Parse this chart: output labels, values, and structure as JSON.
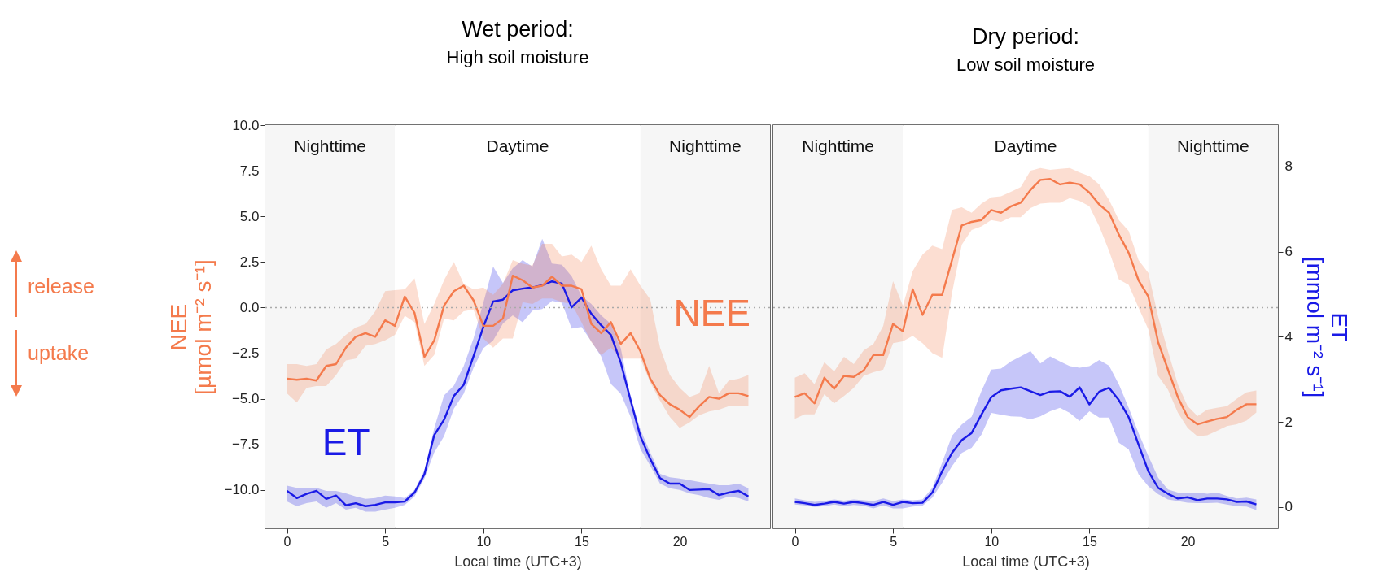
{
  "chart_data": [
    {
      "type": "line",
      "title": "Wet period:",
      "subtitle": "High soil moisture",
      "xlabel": "Local time (UTC+3)",
      "ylabel": "NEE\n[µmol m⁻² s⁻¹]",
      "tick_labels": "xy",
      "grid": false,
      "x": [
        0,
        0.5,
        1,
        1.5,
        2,
        2.5,
        3,
        3.5,
        4,
        4.5,
        5,
        5.5,
        6,
        6.5,
        7,
        7.5,
        8,
        8.5,
        9,
        9.5,
        10,
        10.5,
        11,
        11.5,
        12,
        12.5,
        13,
        13.5,
        14,
        14.5,
        15,
        15.5,
        16,
        16.5,
        17,
        17.5,
        18,
        18.5,
        19,
        19.5,
        20,
        20.5,
        21,
        21.5,
        22,
        22.5,
        23,
        23.5
      ],
      "xlim": [
        -1.1,
        24.6
      ],
      "xticks": [
        0,
        5,
        10,
        15,
        20
      ],
      "ylim": [
        -12.1,
        10
      ],
      "yticks": [
        {
          "value": -10,
          "label": "−10.0"
        },
        -7.5,
        {
          "value": -5,
          "label": "−5.0"
        },
        -2.5,
        {
          "value": 0,
          "label": "0.0"
        },
        2.5,
        {
          "value": 5,
          "label": "5.0"
        },
        7.5,
        {
          "value": 10,
          "label": "10.0"
        }
      ],
      "y2lim": [
        -0.5,
        8.97
      ],
      "ref_lines": [
        {
          "axis": "y",
          "value": 0,
          "color": "#aaaaaa",
          "line_style": "dotted"
        }
      ],
      "bands": [
        {
          "axis": "x",
          "from": -1.1,
          "to": 5.5,
          "label": "Nighttime",
          "color": "#f6f6f6"
        },
        {
          "axis": "x",
          "from": 5.5,
          "to": 18,
          "label": "Daytime",
          "color": "#ffffff"
        },
        {
          "axis": "x",
          "from": 18,
          "to": 24.6,
          "label": "Nighttime",
          "color": "#f6f6f6"
        }
      ],
      "annotations": [
        "release",
        "uptake"
      ],
      "series": [
        {
          "name": "NEE",
          "color": "#f47a4c",
          "values": [
            -3.9,
            -3.96,
            -3.9,
            -4.0,
            -3.2,
            -3.1,
            -2.2,
            -1.6,
            -1.4,
            -1.6,
            -0.7,
            -1.0,
            0.6,
            -0.3,
            -2.7,
            -1.8,
            0.1,
            0.9,
            1.2,
            0.4,
            -1.0,
            -1.0,
            -0.6,
            1.75,
            1.5,
            1.1,
            1.2,
            1.7,
            1.2,
            1.2,
            1.0,
            -0.9,
            -1.4,
            -0.8,
            -2.0,
            -1.4,
            -2.4,
            -3.9,
            -4.8,
            -5.3,
            -5.6,
            -6.0,
            -5.4,
            -4.9,
            -5.0,
            -4.7,
            -4.7,
            -4.85
          ],
          "upper": [
            -3.1,
            -3.1,
            -3.2,
            -3.1,
            -2.3,
            -2.0,
            -1.5,
            -1.1,
            -0.9,
            -0.2,
            0.9,
            0.95,
            1.0,
            1.6,
            -0.9,
            0.2,
            1.5,
            2.5,
            1.3,
            1.0,
            1.1,
            0.7,
            1.3,
            2.6,
            2.4,
            2.3,
            3.5,
            3.5,
            2.8,
            2.9,
            2.5,
            3.4,
            2.1,
            1.2,
            1.2,
            2.1,
            1.2,
            0.45,
            -2.2,
            -3.7,
            -4.4,
            -4.9,
            -4.7,
            -3.2,
            -4.7,
            -4.0,
            -3.9,
            -3.7
          ],
          "lower": [
            -4.7,
            -5.2,
            -4.4,
            -4.3,
            -4.3,
            -3.7,
            -2.9,
            -2.8,
            -2.1,
            -2.0,
            -1.8,
            -1.5,
            -0.45,
            -0.8,
            -3.2,
            -2.6,
            -0.6,
            -0.7,
            -0.2,
            -0.1,
            -1.7,
            -2.2,
            -1.7,
            -1.7,
            0.3,
            0.2,
            0.5,
            0.5,
            0.3,
            0.2,
            -0.8,
            -1.9,
            -2.6,
            -2.2,
            -2.8,
            -2.8,
            -2.8,
            -4.1,
            -5.1,
            -6.0,
            -6.6,
            -6.3,
            -5.9,
            -5.7,
            -5.6,
            -5.4,
            -5.4,
            -5.4
          ]
        },
        {
          "name": "ET",
          "color": "#1a1ae6",
          "axis": "y2",
          "values": [
            0.38,
            0.21,
            0.31,
            0.38,
            0.19,
            0.27,
            0.04,
            0.09,
            0.02,
            0.05,
            0.11,
            0.11,
            0.13,
            0.34,
            0.77,
            1.69,
            2.05,
            2.61,
            2.87,
            3.54,
            4.23,
            4.83,
            4.87,
            5.09,
            5.13,
            5.16,
            5.21,
            5.3,
            5.25,
            4.69,
            4.92,
            4.54,
            4.27,
            4.04,
            3.39,
            2.51,
            1.66,
            1.13,
            0.68,
            0.55,
            0.55,
            0.4,
            0.41,
            0.42,
            0.28,
            0.34,
            0.38,
            0.25
          ],
          "upper": [
            0.5,
            0.45,
            0.45,
            0.45,
            0.38,
            0.38,
            0.32,
            0.25,
            0.19,
            0.21,
            0.27,
            0.25,
            0.21,
            0.4,
            0.86,
            1.85,
            2.62,
            2.85,
            3.31,
            3.96,
            4.8,
            5.65,
            5.26,
            5.61,
            5.8,
            5.65,
            6.3,
            5.72,
            5.69,
            5.42,
            4.96,
            4.77,
            4.5,
            4.3,
            3.73,
            2.58,
            1.82,
            1.28,
            0.78,
            0.7,
            0.67,
            0.63,
            0.59,
            0.55,
            0.51,
            0.51,
            0.55,
            0.44
          ],
          "lower": [
            0.13,
            0.02,
            0.09,
            0.13,
            -0.02,
            0.09,
            -0.06,
            -0.02,
            -0.11,
            -0.11,
            -0.06,
            -0.02,
            0.05,
            0.25,
            0.67,
            1.28,
            1.66,
            2.31,
            2.66,
            3.27,
            3.73,
            3.91,
            4.31,
            4.5,
            4.34,
            4.61,
            4.65,
            4.84,
            4.8,
            4.19,
            4.23,
            3.89,
            3.54,
            2.89,
            2.66,
            2.12,
            1.36,
            0.97,
            0.55,
            0.44,
            0.4,
            0.32,
            0.28,
            0.21,
            0.17,
            0.25,
            0.21,
            0.13
          ]
        }
      ]
    },
    {
      "type": "line",
      "title": "Dry period:",
      "subtitle": "Low soil moisture",
      "xlabel": "Local time (UTC+3)",
      "y2label": "ET\n[mmol m⁻² s⁻¹]",
      "grid": false,
      "x": [
        0,
        0.5,
        1,
        1.5,
        2,
        2.5,
        3,
        3.5,
        4,
        4.5,
        5,
        5.5,
        6,
        6.5,
        7,
        7.5,
        8,
        8.5,
        9,
        9.5,
        10,
        10.5,
        11,
        11.5,
        12,
        12.5,
        13,
        13.5,
        14,
        14.5,
        15,
        15.5,
        16,
        16.5,
        17,
        17.5,
        18,
        18.5,
        19,
        19.5,
        20,
        20.5,
        21,
        21.5,
        22,
        22.5,
        23,
        23.5
      ],
      "xlim": [
        -1.1,
        24.6
      ],
      "xticks": [
        0,
        5,
        10,
        15,
        20
      ],
      "ylim": [
        -12.1,
        10
      ],
      "y2ticks": [
        0,
        2,
        4,
        6,
        8
      ],
      "y2lim": [
        -0.5,
        8.97
      ],
      "ref_lines": [
        {
          "axis": "y",
          "value": 0,
          "color": "#aaaaaa",
          "line_style": "dotted"
        }
      ],
      "bands": [
        {
          "axis": "x",
          "from": -1.1,
          "to": 5.5,
          "label": "Nighttime",
          "color": "#f6f6f6"
        },
        {
          "axis": "x",
          "from": 5.5,
          "to": 18,
          "label": "Daytime",
          "color": "#ffffff"
        },
        {
          "axis": "x",
          "from": 18,
          "to": 24.6,
          "label": "Nighttime",
          "color": "#f6f6f6"
        }
      ],
      "series": [
        {
          "color": "#f47a4c",
          "values": [
            -4.9,
            -4.7,
            -5.25,
            -3.85,
            -4.45,
            -3.75,
            -3.8,
            -3.45,
            -2.6,
            -2.6,
            -0.9,
            -1.3,
            1.0,
            -0.4,
            0.7,
            0.7,
            2.6,
            4.5,
            4.7,
            4.8,
            5.35,
            5.2,
            5.55,
            5.75,
            6.45,
            7.0,
            7.05,
            6.75,
            6.85,
            6.75,
            6.3,
            5.65,
            5.2,
            4.0,
            3.0,
            1.5,
            0.6,
            -1.9,
            -3.4,
            -4.9,
            -6.0,
            -6.4,
            -6.25,
            -6.1,
            -6.0,
            -5.6,
            -5.3,
            -5.3
          ],
          "upper": [
            -3.85,
            -3.6,
            -4.2,
            -3.0,
            -3.5,
            -2.7,
            -3.1,
            -2.35,
            -2.0,
            -1.0,
            1.45,
            0.1,
            2.0,
            2.9,
            3.4,
            3.2,
            5.35,
            5.5,
            5.2,
            5.7,
            6.05,
            6.1,
            6.35,
            6.6,
            7.5,
            7.65,
            7.55,
            7.6,
            7.65,
            7.4,
            7.2,
            6.75,
            5.9,
            4.8,
            4.2,
            2.6,
            1.9,
            -0.5,
            -2.4,
            -4.2,
            -5.4,
            -5.95,
            -5.6,
            -5.5,
            -5.4,
            -5.0,
            -4.65,
            -4.55
          ],
          "lower": [
            -6.1,
            -5.85,
            -5.85,
            -4.75,
            -5.25,
            -4.85,
            -4.4,
            -3.75,
            -3.55,
            -3.4,
            -1.95,
            -1.85,
            -1.55,
            -1.95,
            -2.5,
            -2.75,
            0.8,
            3.45,
            4.25,
            4.45,
            4.8,
            4.7,
            4.95,
            4.95,
            5.45,
            5.7,
            5.75,
            5.75,
            6.0,
            5.85,
            5.55,
            4.45,
            3.1,
            1.55,
            1.25,
            0.0,
            -1.2,
            -3.75,
            -4.5,
            -5.75,
            -6.6,
            -7.05,
            -7.0,
            -6.75,
            -6.5,
            -6.4,
            -6.2,
            -5.75
          ]
        },
        {
          "color": "#1a1ae6",
          "axis": "y2",
          "values": [
            0.12,
            0.09,
            0.05,
            0.08,
            0.12,
            0.08,
            0.12,
            0.09,
            0.05,
            0.12,
            0.05,
            0.12,
            0.09,
            0.1,
            0.34,
            0.84,
            1.27,
            1.57,
            1.74,
            2.17,
            2.58,
            2.74,
            2.78,
            2.81,
            2.72,
            2.63,
            2.71,
            2.72,
            2.59,
            2.81,
            2.41,
            2.71,
            2.8,
            2.51,
            2.11,
            1.47,
            0.84,
            0.45,
            0.31,
            0.2,
            0.23,
            0.16,
            0.2,
            0.2,
            0.18,
            0.12,
            0.13,
            0.06
          ],
          "upper": [
            0.2,
            0.16,
            0.12,
            0.14,
            0.18,
            0.15,
            0.18,
            0.16,
            0.14,
            0.2,
            0.14,
            0.18,
            0.16,
            0.18,
            0.45,
            1.04,
            1.67,
            1.94,
            2.12,
            2.72,
            3.23,
            3.25,
            3.42,
            3.54,
            3.66,
            3.37,
            3.54,
            3.42,
            3.31,
            3.27,
            3.31,
            3.45,
            3.32,
            2.88,
            2.33,
            1.74,
            1.2,
            0.69,
            0.41,
            0.34,
            0.32,
            0.34,
            0.31,
            0.34,
            0.26,
            0.2,
            0.22,
            0.18
          ],
          "lower": [
            0.06,
            0.04,
            0.0,
            0.02,
            0.06,
            0.02,
            0.05,
            0.03,
            -0.03,
            0.04,
            -0.03,
            -0.03,
            0.01,
            0.03,
            0.22,
            0.57,
            0.96,
            1.27,
            1.39,
            1.7,
            2.21,
            2.17,
            2.13,
            2.12,
            2.06,
            2.13,
            2.25,
            2.33,
            2.21,
            2.02,
            2.25,
            2.1,
            2.1,
            1.51,
            1.35,
            0.77,
            0.49,
            0.3,
            0.18,
            0.14,
            0.1,
            0.09,
            0.09,
            0.1,
            0.06,
            0.02,
            0.01,
            -0.07
          ]
        }
      ]
    }
  ]
}
